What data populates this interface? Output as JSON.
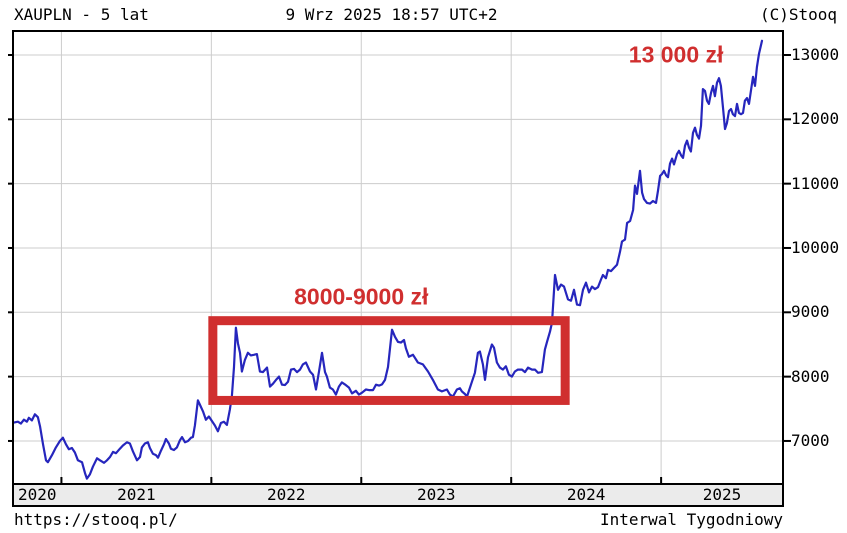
{
  "header": {
    "left": "XAUPLN - 5 lat",
    "center": "9 Wrz 2025 18:57 UTC+2",
    "right": "(C)Stooq"
  },
  "footer": {
    "left": "https://stooq.pl/",
    "right": "Interwal Tygodniowy"
  },
  "colors": {
    "line": "#2626bd",
    "annotation": "#d02f2f",
    "grid": "#cccccc",
    "border": "#000000",
    "axis_strip_fill": "#ebebeb",
    "background": "#ffffff"
  },
  "chart_data": {
    "type": "line",
    "title": "XAUPLN - 5 lat",
    "interval": "Interwal Tygodniowy",
    "currency": "zł",
    "x_range": [
      2020.677,
      2025.813
    ],
    "y_range": [
      6331,
      13373
    ],
    "y_ticks": [
      7000,
      8000,
      9000,
      10000,
      11000,
      12000,
      13000
    ],
    "x_tick_years": [
      2021,
      2022,
      2023,
      2024,
      2025
    ],
    "x_segment_labels": [
      "2020",
      "2021",
      "2022",
      "2023",
      "2024",
      "2025"
    ],
    "grid": true,
    "legend": false,
    "annotations": [
      {
        "text": "13 000 zł",
        "year": 2025.1,
        "price": 13000
      },
      {
        "text": "8000-9000 zł",
        "year": 2023.0,
        "price": 9240
      }
    ],
    "range_box": {
      "year_start": 2022.01,
      "year_end": 2024.36,
      "price_top": 8870,
      "price_bottom": 7630
    },
    "series": [
      {
        "name": "XAUPLN",
        "points": [
          [
            2020.683,
            7285
          ],
          [
            2020.71,
            7300
          ],
          [
            2020.73,
            7270
          ],
          [
            2020.75,
            7330
          ],
          [
            2020.77,
            7300
          ],
          [
            2020.783,
            7360
          ],
          [
            2020.803,
            7320
          ],
          [
            2020.823,
            7415
          ],
          [
            2020.843,
            7370
          ],
          [
            2020.857,
            7230
          ],
          [
            2020.877,
            6950
          ],
          [
            2020.897,
            6700
          ],
          [
            2020.91,
            6670
          ],
          [
            2020.937,
            6780
          ],
          [
            2020.963,
            6900
          ],
          [
            2020.99,
            7000
          ],
          [
            2021.01,
            7050
          ],
          [
            2021.03,
            6950
          ],
          [
            2021.05,
            6870
          ],
          [
            2021.07,
            6890
          ],
          [
            2021.09,
            6820
          ],
          [
            2021.11,
            6700
          ],
          [
            2021.137,
            6670
          ],
          [
            2021.157,
            6500
          ],
          [
            2021.17,
            6415
          ],
          [
            2021.19,
            6480
          ],
          [
            2021.21,
            6600
          ],
          [
            2021.237,
            6730
          ],
          [
            2021.257,
            6700
          ],
          [
            2021.284,
            6660
          ],
          [
            2021.304,
            6700
          ],
          [
            2021.324,
            6750
          ],
          [
            2021.344,
            6830
          ],
          [
            2021.364,
            6810
          ],
          [
            2021.39,
            6880
          ],
          [
            2021.41,
            6930
          ],
          [
            2021.437,
            6980
          ],
          [
            2021.457,
            6960
          ],
          [
            2021.477,
            6840
          ],
          [
            2021.504,
            6700
          ],
          [
            2021.524,
            6750
          ],
          [
            2021.537,
            6900
          ],
          [
            2021.557,
            6960
          ],
          [
            2021.577,
            6980
          ],
          [
            2021.59,
            6890
          ],
          [
            2021.61,
            6800
          ],
          [
            2021.63,
            6780
          ],
          [
            2021.644,
            6740
          ],
          [
            2021.664,
            6850
          ],
          [
            2021.684,
            6950
          ],
          [
            2021.697,
            7030
          ],
          [
            2021.717,
            6960
          ],
          [
            2021.73,
            6880
          ],
          [
            2021.75,
            6860
          ],
          [
            2021.77,
            6900
          ],
          [
            2021.79,
            7010
          ],
          [
            2021.804,
            7060
          ],
          [
            2021.824,
            6980
          ],
          [
            2021.844,
            7000
          ],
          [
            2021.864,
            7050
          ],
          [
            2021.877,
            7060
          ],
          [
            2021.89,
            7240
          ],
          [
            2021.91,
            7630
          ],
          [
            2021.924,
            7560
          ],
          [
            2021.944,
            7460
          ],
          [
            2021.964,
            7330
          ],
          [
            2021.984,
            7380
          ],
          [
            2022.004,
            7310
          ],
          [
            2022.024,
            7240
          ],
          [
            2022.044,
            7150
          ],
          [
            2022.064,
            7280
          ],
          [
            2022.084,
            7300
          ],
          [
            2022.104,
            7250
          ],
          [
            2022.124,
            7490
          ],
          [
            2022.137,
            7700
          ],
          [
            2022.151,
            8150
          ],
          [
            2022.164,
            8760
          ],
          [
            2022.177,
            8520
          ],
          [
            2022.191,
            8370
          ],
          [
            2022.204,
            8080
          ],
          [
            2022.224,
            8260
          ],
          [
            2022.244,
            8370
          ],
          [
            2022.264,
            8330
          ],
          [
            2022.284,
            8340
          ],
          [
            2022.304,
            8350
          ],
          [
            2022.324,
            8080
          ],
          [
            2022.344,
            8070
          ],
          [
            2022.371,
            8140
          ],
          [
            2022.391,
            7845
          ],
          [
            2022.411,
            7890
          ],
          [
            2022.431,
            7950
          ],
          [
            2022.451,
            8000
          ],
          [
            2022.471,
            7875
          ],
          [
            2022.491,
            7870
          ],
          [
            2022.511,
            7920
          ],
          [
            2022.531,
            8110
          ],
          [
            2022.551,
            8120
          ],
          [
            2022.571,
            8070
          ],
          [
            2022.591,
            8110
          ],
          [
            2022.611,
            8190
          ],
          [
            2022.631,
            8220
          ],
          [
            2022.658,
            8080
          ],
          [
            2022.678,
            8030
          ],
          [
            2022.698,
            7800
          ],
          [
            2022.718,
            8080
          ],
          [
            2022.738,
            8370
          ],
          [
            2022.758,
            8070
          ],
          [
            2022.771,
            8000
          ],
          [
            2022.791,
            7830
          ],
          [
            2022.811,
            7800
          ],
          [
            2022.831,
            7720
          ],
          [
            2022.851,
            7845
          ],
          [
            2022.871,
            7910
          ],
          [
            2022.891,
            7880
          ],
          [
            2022.918,
            7830
          ],
          [
            2022.938,
            7740
          ],
          [
            2022.964,
            7780
          ],
          [
            2022.984,
            7720
          ],
          [
            2023.005,
            7750
          ],
          [
            2023.031,
            7800
          ],
          [
            2023.051,
            7790
          ],
          [
            2023.078,
            7790
          ],
          [
            2023.098,
            7875
          ],
          [
            2023.118,
            7860
          ],
          [
            2023.138,
            7880
          ],
          [
            2023.158,
            7950
          ],
          [
            2023.178,
            8150
          ],
          [
            2023.205,
            8730
          ],
          [
            2023.225,
            8620
          ],
          [
            2023.245,
            8540
          ],
          [
            2023.265,
            8530
          ],
          [
            2023.285,
            8570
          ],
          [
            2023.298,
            8440
          ],
          [
            2023.318,
            8310
          ],
          [
            2023.345,
            8340
          ],
          [
            2023.378,
            8220
          ],
          [
            2023.411,
            8190
          ],
          [
            2023.445,
            8080
          ],
          [
            2023.478,
            7950
          ],
          [
            2023.511,
            7800
          ],
          [
            2023.538,
            7770
          ],
          [
            2023.571,
            7800
          ],
          [
            2023.591,
            7720
          ],
          [
            2023.611,
            7690
          ],
          [
            2023.638,
            7800
          ],
          [
            2023.658,
            7820
          ],
          [
            2023.671,
            7770
          ],
          [
            2023.691,
            7730
          ],
          [
            2023.705,
            7690
          ],
          [
            2023.738,
            7920
          ],
          [
            2023.758,
            8060
          ],
          [
            2023.778,
            8370
          ],
          [
            2023.791,
            8390
          ],
          [
            2023.811,
            8190
          ],
          [
            2023.825,
            7950
          ],
          [
            2023.845,
            8300
          ],
          [
            2023.871,
            8500
          ],
          [
            2023.885,
            8450
          ],
          [
            2023.905,
            8220
          ],
          [
            2023.925,
            8140
          ],
          [
            2023.945,
            8110
          ],
          [
            2023.965,
            8160
          ],
          [
            2023.985,
            8030
          ],
          [
            2024.005,
            8000
          ],
          [
            2024.025,
            8080
          ],
          [
            2024.045,
            8110
          ],
          [
            2024.072,
            8110
          ],
          [
            2024.092,
            8070
          ],
          [
            2024.112,
            8140
          ],
          [
            2024.139,
            8110
          ],
          [
            2024.159,
            8110
          ],
          [
            2024.179,
            8060
          ],
          [
            2024.205,
            8070
          ],
          [
            2024.225,
            8420
          ],
          [
            2024.239,
            8540
          ],
          [
            2024.259,
            8700
          ],
          [
            2024.272,
            8840
          ],
          [
            2024.292,
            9580
          ],
          [
            2024.312,
            9350
          ],
          [
            2024.332,
            9430
          ],
          [
            2024.352,
            9400
          ],
          [
            2024.379,
            9200
          ],
          [
            2024.399,
            9180
          ],
          [
            2024.419,
            9350
          ],
          [
            2024.439,
            9120
          ],
          [
            2024.459,
            9110
          ],
          [
            2024.479,
            9350
          ],
          [
            2024.499,
            9460
          ],
          [
            2024.519,
            9310
          ],
          [
            2024.539,
            9400
          ],
          [
            2024.559,
            9360
          ],
          [
            2024.579,
            9390
          ],
          [
            2024.599,
            9510
          ],
          [
            2024.612,
            9580
          ],
          [
            2024.632,
            9530
          ],
          [
            2024.646,
            9660
          ],
          [
            2024.666,
            9640
          ],
          [
            2024.686,
            9690
          ],
          [
            2024.706,
            9740
          ],
          [
            2024.726,
            9940
          ],
          [
            2024.739,
            10100
          ],
          [
            2024.759,
            10130
          ],
          [
            2024.773,
            10390
          ],
          [
            2024.793,
            10420
          ],
          [
            2024.813,
            10590
          ],
          [
            2024.826,
            10970
          ],
          [
            2024.839,
            10840
          ],
          [
            2024.859,
            11200
          ],
          [
            2024.873,
            10860
          ],
          [
            2024.886,
            10760
          ],
          [
            2024.906,
            10700
          ],
          [
            2024.926,
            10690
          ],
          [
            2024.946,
            10730
          ],
          [
            2024.966,
            10700
          ],
          [
            2024.979,
            10890
          ],
          [
            2024.993,
            11120
          ],
          [
            2025.006,
            11150
          ],
          [
            2025.019,
            11200
          ],
          [
            2025.033,
            11130
          ],
          [
            2025.046,
            11100
          ],
          [
            2025.059,
            11310
          ],
          [
            2025.073,
            11390
          ],
          [
            2025.086,
            11300
          ],
          [
            2025.106,
            11460
          ],
          [
            2025.119,
            11510
          ],
          [
            2025.133,
            11440
          ],
          [
            2025.146,
            11400
          ],
          [
            2025.159,
            11590
          ],
          [
            2025.173,
            11670
          ],
          [
            2025.186,
            11560
          ],
          [
            2025.199,
            11500
          ],
          [
            2025.213,
            11790
          ],
          [
            2025.226,
            11870
          ],
          [
            2025.239,
            11760
          ],
          [
            2025.253,
            11700
          ],
          [
            2025.266,
            11900
          ],
          [
            2025.279,
            12470
          ],
          [
            2025.293,
            12440
          ],
          [
            2025.306,
            12290
          ],
          [
            2025.319,
            12240
          ],
          [
            2025.333,
            12410
          ],
          [
            2025.346,
            12520
          ],
          [
            2025.359,
            12360
          ],
          [
            2025.373,
            12570
          ],
          [
            2025.386,
            12640
          ],
          [
            2025.399,
            12520
          ],
          [
            2025.413,
            12180
          ],
          [
            2025.426,
            11850
          ],
          [
            2025.439,
            11940
          ],
          [
            2025.453,
            12130
          ],
          [
            2025.466,
            12160
          ],
          [
            2025.479,
            12080
          ],
          [
            2025.493,
            12050
          ],
          [
            2025.506,
            12240
          ],
          [
            2025.519,
            12100
          ],
          [
            2025.533,
            12080
          ],
          [
            2025.546,
            12100
          ],
          [
            2025.559,
            12290
          ],
          [
            2025.573,
            12330
          ],
          [
            2025.586,
            12240
          ],
          [
            2025.599,
            12440
          ],
          [
            2025.613,
            12660
          ],
          [
            2025.626,
            12520
          ],
          [
            2025.639,
            12810
          ],
          [
            2025.653,
            13020
          ],
          [
            2025.673,
            13220
          ]
        ]
      }
    ]
  }
}
